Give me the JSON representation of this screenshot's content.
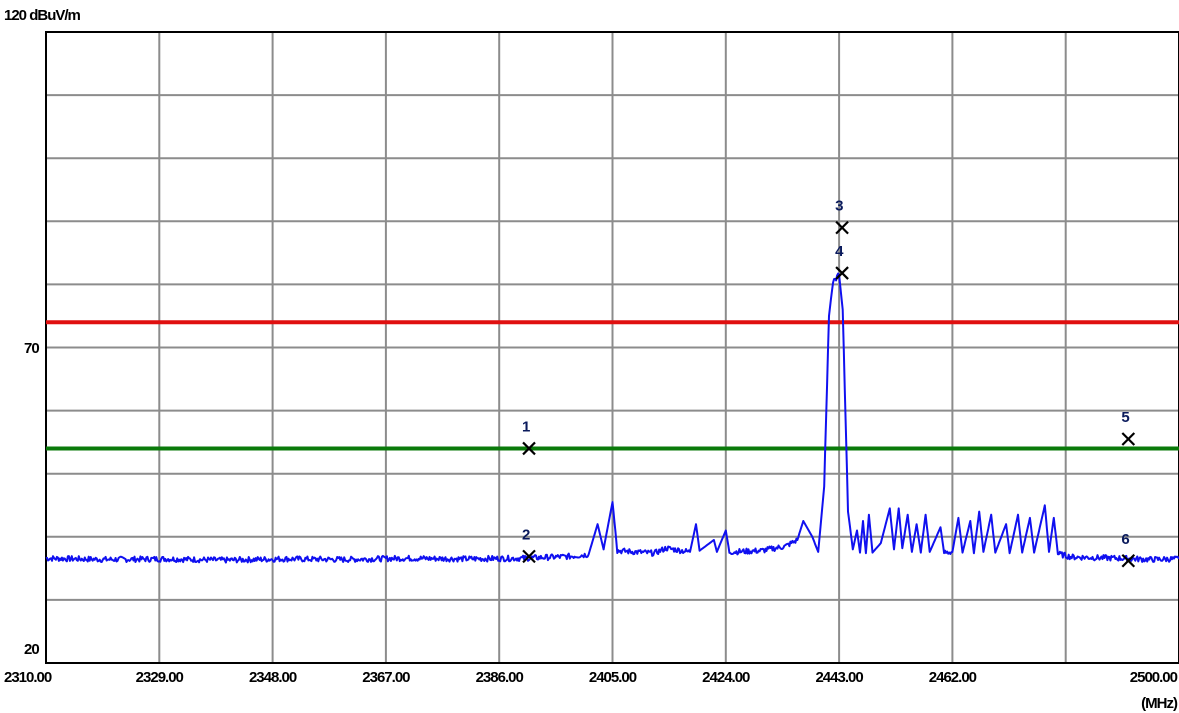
{
  "chart_data": {
    "type": "line",
    "top_label": "120 dBuV/m",
    "y_mid_label": "70",
    "y_bottom_label": "20",
    "ylim": [
      20,
      120
    ],
    "xlim": [
      2310,
      2500
    ],
    "x_unit_label": "(MHz)",
    "x_tick_labels": [
      "2310.00",
      "2329.00",
      "2348.00",
      "2367.00",
      "2386.00",
      "2405.00",
      "2424.00",
      "2443.00",
      "2462.00",
      "2500.00"
    ],
    "x_tick_values": [
      2310,
      2329,
      2348,
      2367,
      2386,
      2405,
      2424,
      2443,
      2462,
      2500
    ],
    "grid": true,
    "limit_lines": [
      {
        "value": 74,
        "color": "#e01010"
      },
      {
        "value": 54,
        "color": "#0a7a0a"
      }
    ],
    "trace_color": "#1010f0",
    "trace": {
      "noise_floor": 36.5,
      "points": [
        [
          2310,
          36.6
        ],
        [
          2320,
          36.4
        ],
        [
          2330,
          36.5
        ],
        [
          2340,
          36.3
        ],
        [
          2350,
          36.5
        ],
        [
          2360,
          36.4
        ],
        [
          2370,
          36.6
        ],
        [
          2380,
          36.5
        ],
        [
          2390,
          36.6
        ],
        [
          2398,
          36.9
        ],
        [
          2401,
          37.2
        ],
        [
          2402.5,
          42.0
        ],
        [
          2403.5,
          38.0
        ],
        [
          2404.5,
          43.0
        ],
        [
          2405,
          45.5
        ],
        [
          2405.8,
          37.8
        ],
        [
          2412,
          37.4
        ],
        [
          2414,
          38.2
        ],
        [
          2418,
          37.6
        ],
        [
          2419,
          42.0
        ],
        [
          2419.6,
          37.8
        ],
        [
          2422,
          39.5
        ],
        [
          2422.5,
          37.6
        ],
        [
          2424,
          41.0
        ],
        [
          2424.6,
          37.6
        ],
        [
          2430,
          37.8
        ],
        [
          2434,
          38.5
        ],
        [
          2436,
          39.5
        ],
        [
          2437,
          42.5
        ],
        [
          2438.5,
          40.0
        ],
        [
          2439.5,
          37.6
        ],
        [
          2440.5,
          48.0
        ],
        [
          2441.3,
          75.0
        ],
        [
          2442.0,
          80.5
        ],
        [
          2443,
          81.5
        ],
        [
          2443.6,
          76.0
        ],
        [
          2444.5,
          44.0
        ],
        [
          2445.3,
          38.0
        ],
        [
          2446,
          41.0
        ],
        [
          2446.5,
          37.5
        ],
        [
          2447,
          42.5
        ],
        [
          2447.5,
          37.4
        ],
        [
          2448,
          43.5
        ],
        [
          2448.6,
          37.5
        ],
        [
          2450,
          39.0
        ],
        [
          2451.5,
          44.5
        ],
        [
          2452.2,
          38.0
        ],
        [
          2453,
          44.5
        ],
        [
          2453.6,
          38.2
        ],
        [
          2454.5,
          43.5
        ],
        [
          2455.2,
          37.6
        ],
        [
          2456,
          42.0
        ],
        [
          2456.7,
          37.5
        ],
        [
          2457.5,
          43.5
        ],
        [
          2458.2,
          37.6
        ],
        [
          2460,
          41.5
        ],
        [
          2460.6,
          37.5
        ],
        [
          2462,
          37.6
        ],
        [
          2463,
          43.0
        ],
        [
          2463.7,
          37.5
        ],
        [
          2465,
          42.5
        ],
        [
          2465.6,
          37.4
        ],
        [
          2466.5,
          44.0
        ],
        [
          2467.2,
          37.6
        ],
        [
          2468.5,
          43.5
        ],
        [
          2469.2,
          37.5
        ],
        [
          2471,
          42.0
        ],
        [
          2471.6,
          37.4
        ],
        [
          2473,
          43.5
        ],
        [
          2473.7,
          37.5
        ],
        [
          2475,
          43.0
        ],
        [
          2475.7,
          37.5
        ],
        [
          2477.5,
          45.0
        ],
        [
          2478.2,
          37.6
        ],
        [
          2479,
          43.0
        ],
        [
          2479.7,
          37.3
        ],
        [
          2482,
          36.8
        ],
        [
          2490,
          36.6
        ],
        [
          2495,
          36.4
        ],
        [
          2500,
          36.5
        ]
      ]
    },
    "markers": [
      {
        "label": "1",
        "x": 2391,
        "y": 54.0
      },
      {
        "label": "2",
        "x": 2391,
        "y": 36.9
      },
      {
        "label": "3",
        "x": 2443.5,
        "y": 89.0
      },
      {
        "label": "4",
        "x": 2443.5,
        "y": 81.8
      },
      {
        "label": "5",
        "x": 2491.5,
        "y": 55.5
      },
      {
        "label": "6",
        "x": 2491.5,
        "y": 36.2
      }
    ]
  }
}
